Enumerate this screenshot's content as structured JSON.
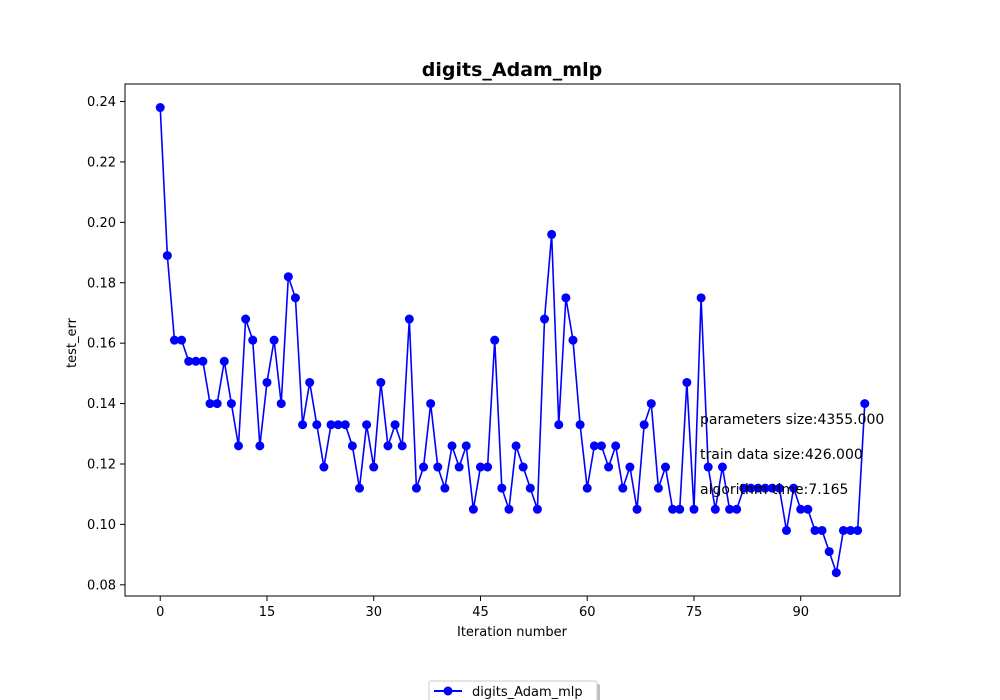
{
  "chart_data": {
    "type": "line",
    "title": "digits_Adam_mlp",
    "xlabel": "Iteration number",
    "ylabel": "test_err",
    "xlim": [
      -4.95,
      103.95
    ],
    "ylim": [
      0.0763,
      0.2458
    ],
    "x_ticks": [
      0,
      15,
      30,
      45,
      60,
      75,
      90
    ],
    "y_ticks": [
      0.08,
      0.1,
      0.12,
      0.14,
      0.16,
      0.18,
      0.2,
      0.22,
      0.24
    ],
    "y_tick_labels": [
      "0.08",
      "0.10",
      "0.12",
      "0.14",
      "0.16",
      "0.18",
      "0.20",
      "0.22",
      "0.24"
    ],
    "grid": false,
    "legend_placement": "bottom-center",
    "marker": "circle",
    "color": "#0000ff",
    "series": [
      {
        "name": "digits_Adam_mlp",
        "values": [
          0.238,
          0.189,
          0.161,
          0.161,
          0.154,
          0.154,
          0.154,
          0.14,
          0.14,
          0.154,
          0.14,
          0.126,
          0.168,
          0.161,
          0.126,
          0.147,
          0.161,
          0.14,
          0.182,
          0.175,
          0.133,
          0.147,
          0.133,
          0.119,
          0.133,
          0.133,
          0.133,
          0.126,
          0.112,
          0.133,
          0.119,
          0.147,
          0.126,
          0.133,
          0.126,
          0.168,
          0.112,
          0.119,
          0.14,
          0.119,
          0.112,
          0.126,
          0.119,
          0.126,
          0.105,
          0.119,
          0.119,
          0.161,
          0.112,
          0.105,
          0.126,
          0.119,
          0.112,
          0.105,
          0.168,
          0.196,
          0.133,
          0.175,
          0.161,
          0.133,
          0.112,
          0.126,
          0.126,
          0.119,
          0.126,
          0.112,
          0.119,
          0.105,
          0.133,
          0.14,
          0.112,
          0.119,
          0.105,
          0.105,
          0.147,
          0.105,
          0.175,
          0.119,
          0.105,
          0.119,
          0.105,
          0.105,
          0.112,
          0.112,
          0.112,
          0.112,
          0.112,
          0.112,
          0.098,
          0.112,
          0.105,
          0.105,
          0.098,
          0.098,
          0.091,
          0.084,
          0.098,
          0.098,
          0.098,
          0.14
        ]
      }
    ],
    "annotations": [
      "parameters size:4355.000",
      "train data size:426.000",
      "algorithm time:7.165"
    ]
  }
}
